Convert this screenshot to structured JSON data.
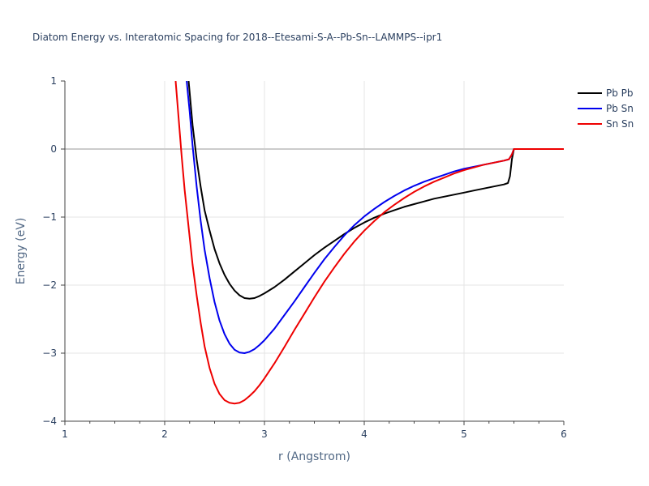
{
  "chart_data": {
    "type": "line",
    "title": "Diatom Energy vs. Interatomic Spacing for 2018--Etesami-S-A--Pb-Sn--LAMMPS--ipr1",
    "xlabel": "r (Angstrom)",
    "ylabel": "Energy (eV)",
    "xlim": [
      1,
      6
    ],
    "ylim": [
      -4,
      1
    ],
    "xticks": [
      "1",
      "2",
      "3",
      "4",
      "5",
      "6"
    ],
    "yticks": [
      "−4",
      "−3",
      "−2",
      "−1",
      "0",
      "1"
    ],
    "grid": true,
    "legend_position": "top-right",
    "series": [
      {
        "name": "Pb Pb",
        "color": "#000000",
        "x": [
          2.24,
          2.28,
          2.32,
          2.36,
          2.4,
          2.45,
          2.5,
          2.55,
          2.6,
          2.65,
          2.7,
          2.75,
          2.8,
          2.85,
          2.9,
          2.95,
          3.0,
          3.1,
          3.2,
          3.3,
          3.4,
          3.5,
          3.6,
          3.7,
          3.8,
          3.9,
          4.0,
          4.1,
          4.2,
          4.3,
          4.4,
          4.5,
          4.6,
          4.7,
          4.8,
          4.9,
          5.0,
          5.1,
          5.2,
          5.3,
          5.4,
          5.44,
          5.46,
          5.48,
          5.5,
          5.6,
          5.8,
          6.0
        ],
        "values": [
          1.0,
          0.35,
          -0.15,
          -0.55,
          -0.9,
          -1.2,
          -1.47,
          -1.68,
          -1.85,
          -1.98,
          -2.08,
          -2.15,
          -2.19,
          -2.2,
          -2.19,
          -2.16,
          -2.12,
          -2.03,
          -1.92,
          -1.8,
          -1.68,
          -1.56,
          -1.45,
          -1.35,
          -1.25,
          -1.16,
          -1.08,
          -1.01,
          -0.95,
          -0.9,
          -0.85,
          -0.81,
          -0.77,
          -0.73,
          -0.7,
          -0.67,
          -0.64,
          -0.61,
          -0.58,
          -0.55,
          -0.52,
          -0.5,
          -0.4,
          -0.15,
          0.0,
          0.0,
          0.0,
          0.0
        ]
      },
      {
        "name": "Pb Sn",
        "color": "#0000ee",
        "x": [
          2.22,
          2.25,
          2.28,
          2.32,
          2.36,
          2.4,
          2.45,
          2.5,
          2.55,
          2.6,
          2.65,
          2.7,
          2.75,
          2.8,
          2.85,
          2.9,
          2.95,
          3.0,
          3.1,
          3.2,
          3.3,
          3.4,
          3.5,
          3.6,
          3.7,
          3.8,
          3.9,
          4.0,
          4.1,
          4.2,
          4.3,
          4.4,
          4.5,
          4.6,
          4.7,
          4.8,
          4.9,
          5.0,
          5.1,
          5.2,
          5.3,
          5.4,
          5.45,
          5.48,
          5.5,
          5.6,
          5.8,
          6.0
        ],
        "values": [
          1.0,
          0.55,
          0.05,
          -0.55,
          -1.05,
          -1.48,
          -1.9,
          -2.25,
          -2.52,
          -2.72,
          -2.86,
          -2.95,
          -2.99,
          -3.0,
          -2.98,
          -2.94,
          -2.88,
          -2.81,
          -2.64,
          -2.44,
          -2.24,
          -2.03,
          -1.82,
          -1.62,
          -1.44,
          -1.27,
          -1.12,
          -0.99,
          -0.88,
          -0.78,
          -0.69,
          -0.61,
          -0.54,
          -0.48,
          -0.43,
          -0.38,
          -0.33,
          -0.29,
          -0.26,
          -0.23,
          -0.2,
          -0.17,
          -0.15,
          -0.08,
          0.0,
          0.0,
          0.0,
          0.0
        ]
      },
      {
        "name": "Sn Sn",
        "color": "#ee0000",
        "x": [
          2.11,
          2.14,
          2.17,
          2.2,
          2.24,
          2.28,
          2.32,
          2.36,
          2.4,
          2.45,
          2.5,
          2.55,
          2.6,
          2.65,
          2.7,
          2.75,
          2.8,
          2.85,
          2.9,
          2.95,
          3.0,
          3.1,
          3.2,
          3.3,
          3.4,
          3.5,
          3.6,
          3.7,
          3.8,
          3.9,
          4.0,
          4.1,
          4.2,
          4.3,
          4.4,
          4.5,
          4.6,
          4.7,
          4.8,
          4.9,
          5.0,
          5.1,
          5.2,
          5.3,
          5.4,
          5.45,
          5.48,
          5.5,
          5.6,
          5.8,
          6.0
        ],
        "values": [
          1.0,
          0.45,
          -0.1,
          -0.6,
          -1.15,
          -1.7,
          -2.15,
          -2.55,
          -2.9,
          -3.22,
          -3.45,
          -3.6,
          -3.69,
          -3.73,
          -3.74,
          -3.73,
          -3.69,
          -3.63,
          -3.56,
          -3.47,
          -3.37,
          -3.15,
          -2.91,
          -2.66,
          -2.42,
          -2.18,
          -1.95,
          -1.74,
          -1.54,
          -1.36,
          -1.2,
          -1.06,
          -0.93,
          -0.82,
          -0.72,
          -0.63,
          -0.55,
          -0.48,
          -0.42,
          -0.36,
          -0.31,
          -0.27,
          -0.23,
          -0.2,
          -0.17,
          -0.15,
          -0.08,
          0.0,
          0.0,
          0.0,
          0.0
        ]
      }
    ]
  }
}
